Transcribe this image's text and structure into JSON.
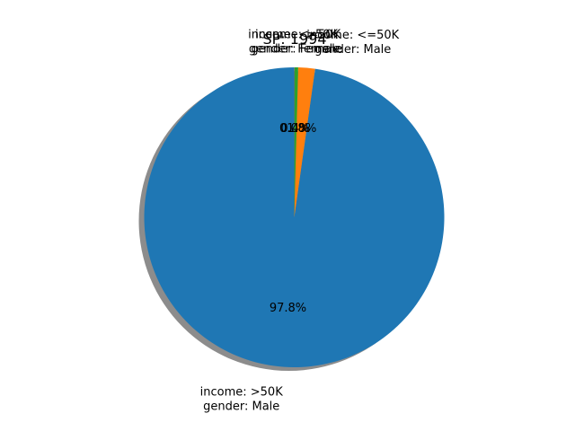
{
  "chart_data": {
    "type": "pie",
    "title": "SP: 1994",
    "slices": [
      {
        "label_line1": "income: >50K",
        "label_line2": "gender: Male",
        "pct_label": "97.8%",
        "value": 97.8,
        "color": "#1f77b4"
      },
      {
        "label_line1": "income: <=50K",
        "label_line2": "gender: Male",
        "pct_label": "1.8%",
        "value": 1.8,
        "color": "#ff7f0e"
      },
      {
        "label_line1": "income: >50K",
        "label_line2": "gender: Female",
        "pct_label": "0.4%",
        "value": 0.4,
        "color": "#2ca02c"
      },
      {
        "label_line1": "income: <=50K",
        "label_line2": "gender: Female",
        "pct_label": "0.0%",
        "value": 0.02,
        "color": "#d62728"
      }
    ],
    "start_angle_deg": 90,
    "shadow": true,
    "legend": "none"
  }
}
